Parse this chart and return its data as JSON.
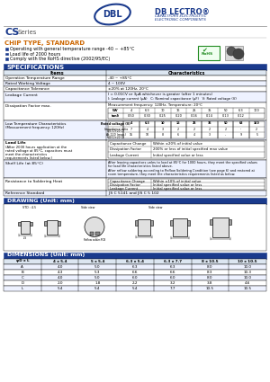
{
  "title_series": "CS Series",
  "chip_type": "CHIP TYPE, STANDARD",
  "features": [
    "Operating with general temperature range -40 ~ +85°C",
    "Load life of 2000 hours",
    "Comply with the RoHS directive (2002/95/EC)"
  ],
  "spec_title": "SPECIFICATIONS",
  "blue_header_color": "#1a3a8c",
  "blue_header_text": "#ffffff",
  "logo_color": "#1a3a8c",
  "cs_color": "#1a3a8c",
  "chip_type_color": "#cc6600",
  "bullet_color": "#1a3a8c",
  "bg_color": "#ffffff",
  "table_header_bg": "#dce6f1",
  "dim_headers": [
    "φD x L",
    "4 x 5.4",
    "5 x 5.4",
    "6.3 x 5.4",
    "6.3 x 7.7",
    "8 x 10.5",
    "10 x 10.5"
  ],
  "dim_rows": [
    [
      "A",
      "4.0",
      "5.0",
      "6.3",
      "6.3",
      "8.0",
      "10.0"
    ],
    [
      "B",
      "4.3",
      "5.3",
      "6.6",
      "6.6",
      "8.3",
      "10.3"
    ],
    [
      "C",
      "4.0",
      "5.0",
      "6.0",
      "6.0",
      "8.0",
      "10.0"
    ],
    [
      "D",
      "2.0",
      "1.8",
      "2.2",
      "3.2",
      "3.8",
      "4.6"
    ],
    [
      "L",
      "5.4",
      "5.4",
      "5.4",
      "7.7",
      "10.5",
      "10.5"
    ]
  ]
}
